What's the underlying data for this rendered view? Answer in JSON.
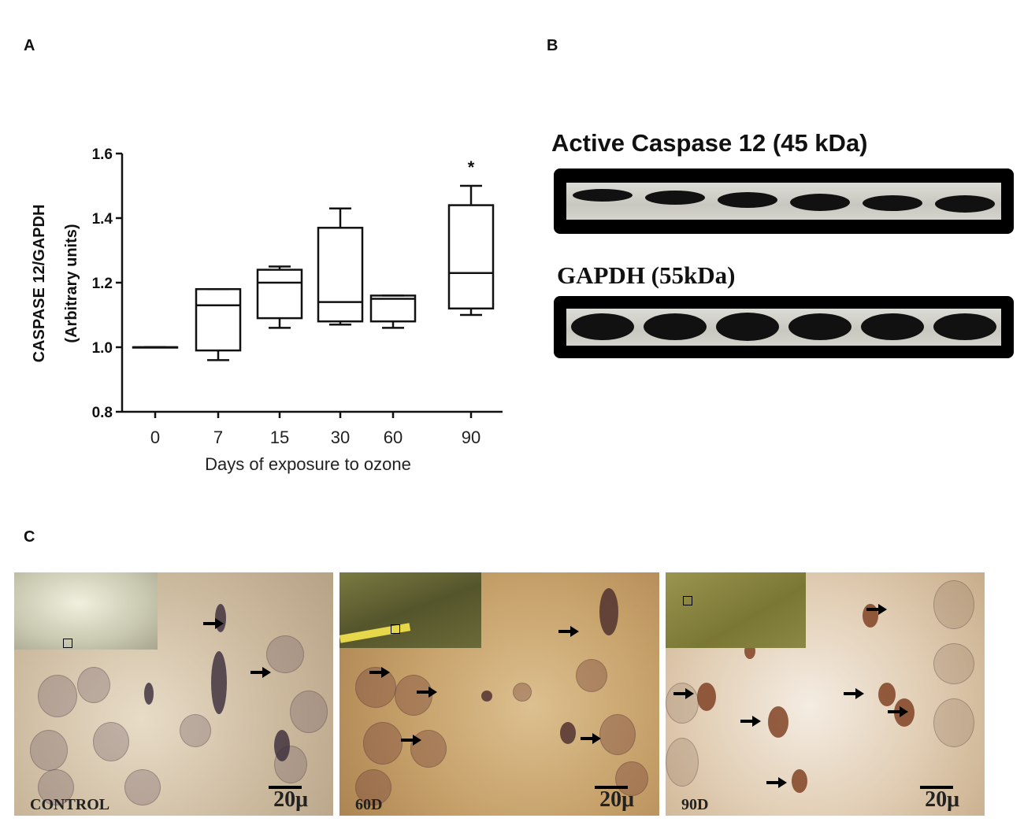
{
  "panels": {
    "a": "A",
    "b": "B",
    "c": "C"
  },
  "chart_data": {
    "type": "box",
    "ylabel_line1": "CASPASE 12/GAPDH",
    "ylabel_line2": "(Arbitrary units)",
    "xlabel": "Days of exposure to ozone",
    "categories": [
      "0",
      "7",
      "15",
      "30",
      "60",
      "90"
    ],
    "yticks": [
      "0.8",
      "1.0",
      "1.2",
      "1.4",
      "1.6"
    ],
    "ylim": [
      0.8,
      1.6
    ],
    "boxes": [
      {
        "min": 1.0,
        "q1": 1.0,
        "median": 1.0,
        "q3": 1.0,
        "max": 1.0
      },
      {
        "min": 0.96,
        "q1": 0.99,
        "median": 1.13,
        "q3": 1.18,
        "max": 1.18
      },
      {
        "min": 1.06,
        "q1": 1.09,
        "median": 1.2,
        "q3": 1.24,
        "max": 1.25
      },
      {
        "min": 1.07,
        "q1": 1.08,
        "median": 1.14,
        "q3": 1.37,
        "max": 1.43
      },
      {
        "min": 1.06,
        "q1": 1.08,
        "median": 1.15,
        "q3": 1.16,
        "max": 1.16
      },
      {
        "min": 1.1,
        "q1": 1.12,
        "median": 1.23,
        "q3": 1.44,
        "max": 1.5
      }
    ],
    "significance": {
      "category": "90",
      "marker": "*"
    }
  },
  "blot": {
    "caspase_title": "Active Caspase 12 (45 kDa)",
    "gapdh_title": "GAPDH (55kDa)",
    "lanes": 6
  },
  "micrographs": [
    {
      "label": "CONTROL",
      "scale": "20μ"
    },
    {
      "label": "60D",
      "scale": "20μ"
    },
    {
      "label": "90D",
      "scale": "20μ"
    }
  ]
}
